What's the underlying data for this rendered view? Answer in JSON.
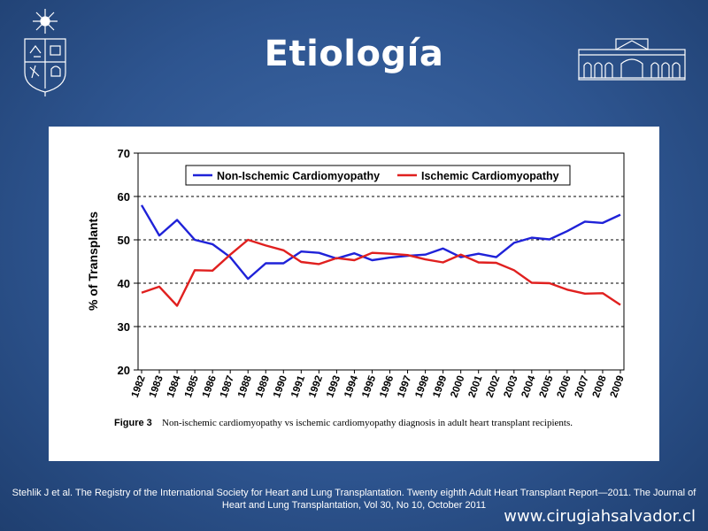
{
  "slide": {
    "title": "Etiología",
    "citation_line1": "Stehlik J et al. The Registry of the International Society for Heart and Lung Transplantation. Twenty eighth Adult Heart Transplant Report—2011. The Journal of",
    "citation_line2": "Heart and Lung Transplantation, Vol 30, No 10, October 2011",
    "website": "www.cirugiahsalvador.cl"
  },
  "figure": {
    "label": "Figure 3",
    "caption": "Non-ischemic cardiomyopathy vs ischemic cardiomyopathy diagnosis in adult heart transplant recipients."
  },
  "chart_data": {
    "type": "line",
    "ylabel": "% of Transplants",
    "xlabel": "",
    "ylim": [
      20,
      70
    ],
    "yticks": [
      20,
      30,
      40,
      50,
      60,
      70
    ],
    "grid": "horizontal dashed",
    "legend_position": "top-center",
    "x": [
      "1982",
      "1983",
      "1984",
      "1985",
      "1986",
      "1987",
      "1988",
      "1989",
      "1990",
      "1991",
      "1992",
      "1993",
      "1994",
      "1995",
      "1996",
      "1997",
      "1998",
      "1999",
      "2000",
      "2001",
      "2002",
      "2003",
      "2004",
      "2005",
      "2006",
      "2007",
      "2008",
      "2009"
    ],
    "series": [
      {
        "name": "Non-Ischemic Cardiomyopathy",
        "color": "#1f22d8",
        "values": [
          58.0,
          51.0,
          54.6,
          50.0,
          49.0,
          46.0,
          41.0,
          44.6,
          44.6,
          47.3,
          47.0,
          45.7,
          46.9,
          45.3,
          45.9,
          46.3,
          46.6,
          48.0,
          46.0,
          46.8,
          46.0,
          49.3,
          50.5,
          50.1,
          52.0,
          54.2,
          53.9,
          55.8
        ]
      },
      {
        "name": "Ischemic Cardiomyopathy",
        "color": "#e0201f",
        "values": [
          37.8,
          39.2,
          34.8,
          43.0,
          42.9,
          46.6,
          50.0,
          48.7,
          47.6,
          44.9,
          44.4,
          45.8,
          45.3,
          47.0,
          46.8,
          46.5,
          45.5,
          44.8,
          46.6,
          44.8,
          44.7,
          43.0,
          40.1,
          40.0,
          38.5,
          37.6,
          37.7,
          35.0
        ]
      }
    ]
  }
}
